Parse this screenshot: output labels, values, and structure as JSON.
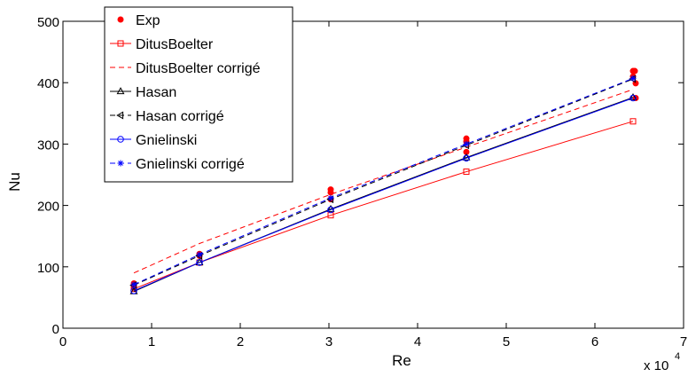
{
  "chart_data": {
    "type": "line",
    "xlabel": "Re",
    "ylabel": "Nu",
    "x_multiplier": "x 10",
    "x_multiplier_exp": "4",
    "xlim": [
      0,
      70000
    ],
    "ylim": [
      0,
      500
    ],
    "xticks": [
      0,
      10000,
      20000,
      30000,
      40000,
      50000,
      60000,
      70000
    ],
    "xtick_labels": [
      "0",
      "1",
      "2",
      "3",
      "4",
      "5",
      "6",
      "7"
    ],
    "yticks": [
      0,
      100,
      200,
      300,
      400,
      500
    ],
    "ytick_labels": [
      "0",
      "100",
      "200",
      "300",
      "400",
      "500"
    ],
    "grid": false,
    "legend_position": "top-left",
    "series": [
      {
        "name": "Exp",
        "color": "#ff0000",
        "style": "points",
        "marker": "dot",
        "x": [
          8000,
          8000,
          8000,
          15400,
          15400,
          30200,
          30200,
          30200,
          45500,
          45500,
          45500,
          64300,
          64300,
          64500,
          64600,
          64600
        ],
        "y": [
          66,
          70,
          73,
          118,
          121,
          210,
          221,
          226,
          287,
          304,
          309,
          410,
          419,
          419,
          399,
          375
        ]
      },
      {
        "name": "DitusBoelter",
        "color": "#ff0000",
        "style": "solid",
        "marker": "square",
        "x": [
          8000,
          15400,
          30200,
          45500,
          64300
        ],
        "y": [
          64,
          107,
          184,
          255,
          337
        ]
      },
      {
        "name": "DitusBoelter corrigé",
        "color": "#ff0000",
        "style": "dashed",
        "marker": "none",
        "x": [
          8000,
          15400,
          30200,
          45500,
          64300
        ],
        "y": [
          90,
          138,
          218,
          295,
          389
        ]
      },
      {
        "name": "Hasan",
        "color": "#000000",
        "style": "solid",
        "marker": "triangle-up",
        "x": [
          8000,
          15400,
          30200,
          45500,
          64300
        ],
        "y": [
          60,
          107,
          194,
          278,
          376
        ]
      },
      {
        "name": "Hasan corrigé",
        "color": "#000000",
        "style": "dashed",
        "marker": "triangle-left",
        "x": [
          8000,
          15400,
          30200,
          45500,
          64300
        ],
        "y": [
          70,
          118,
          210,
          298,
          406
        ]
      },
      {
        "name": "Gnielinski",
        "color": "#0000ff",
        "style": "solid",
        "marker": "circle",
        "x": [
          8000,
          15400,
          30200,
          45500,
          64300
        ],
        "y": [
          61,
          107,
          193,
          277,
          375
        ]
      },
      {
        "name": "Gnielinski corrigé",
        "color": "#0000ff",
        "style": "dashed",
        "marker": "star",
        "x": [
          8000,
          15400,
          30200,
          45500,
          64300
        ],
        "y": [
          71,
          120,
          212,
          300,
          407
        ]
      }
    ]
  }
}
